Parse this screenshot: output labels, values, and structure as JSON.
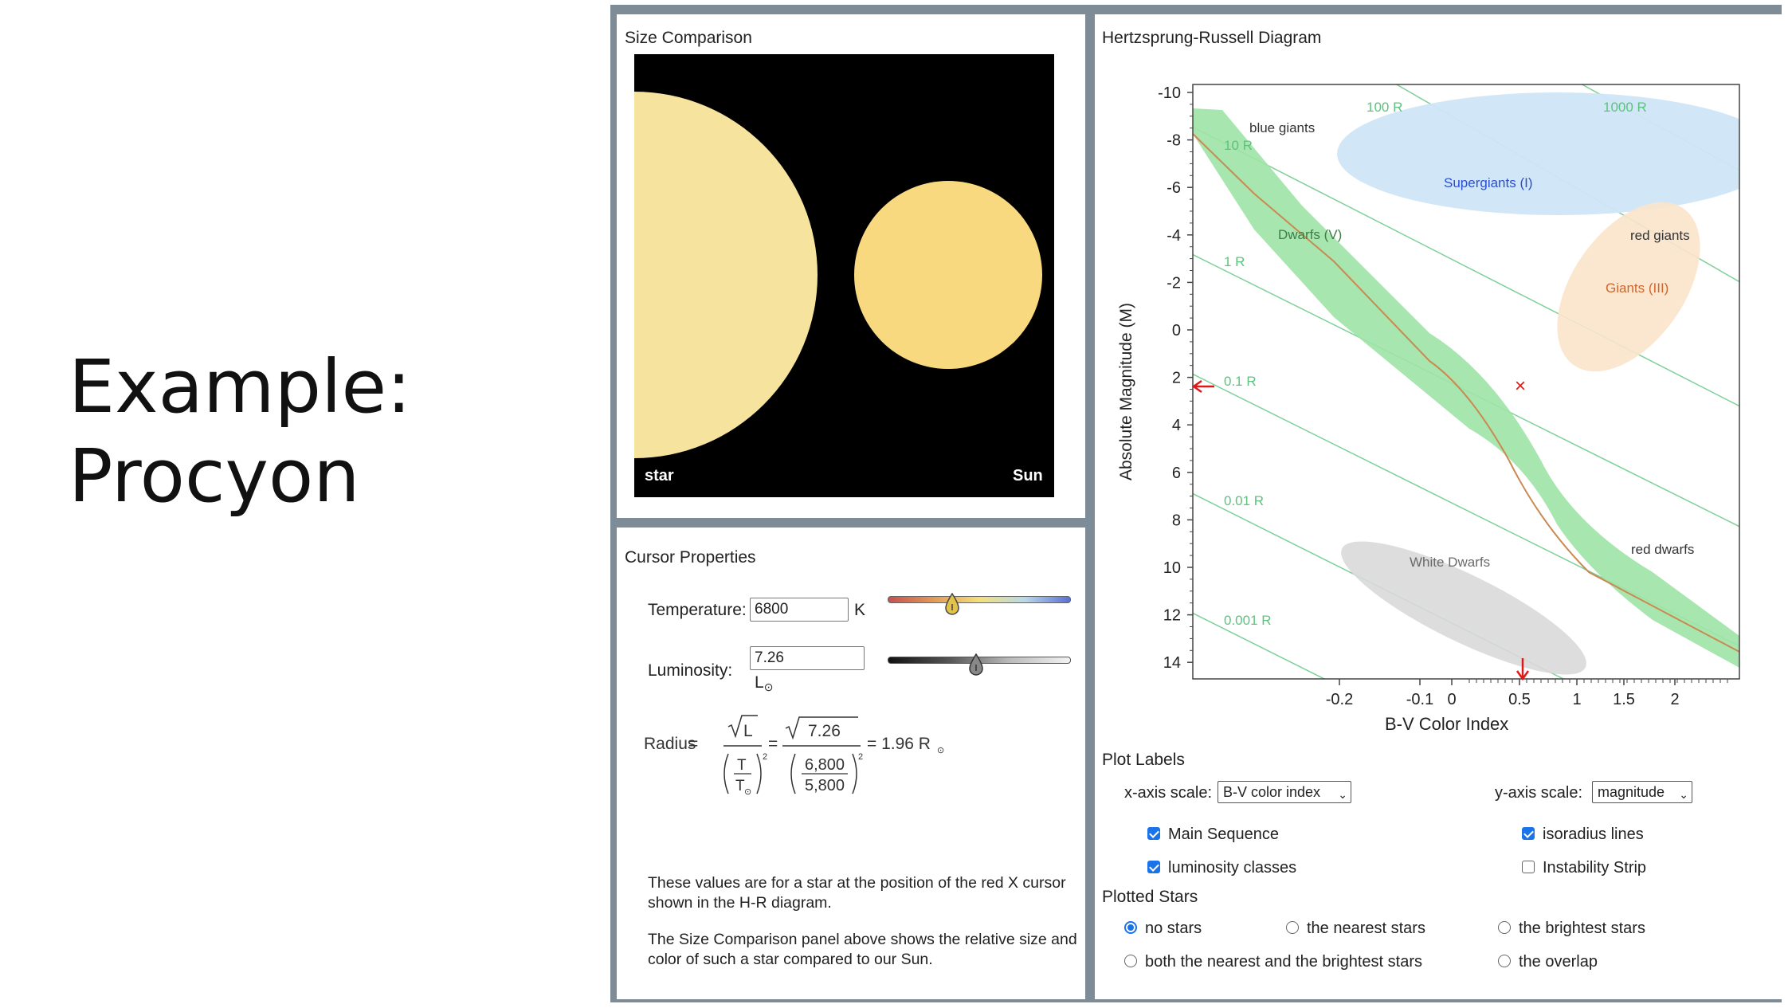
{
  "slide": {
    "title_line1": "Example:",
    "title_line2": "Procyon"
  },
  "size_comparison": {
    "title": "Size Comparison",
    "star_label": "star",
    "sun_label": "Sun",
    "star_color": "#f6e49e",
    "sun_color": "#f8d97f"
  },
  "cursor_properties": {
    "title": "Cursor Properties",
    "temperature_label": "Temperature:",
    "temperature_value": "6800",
    "temperature_unit": "K",
    "luminosity_label": "Luminosity:",
    "luminosity_value": "7.26",
    "luminosity_unit": "L",
    "radius_label": "Radius",
    "formula": {
      "sqrt_L": "L",
      "T": "T",
      "T_sun": "T",
      "lum_value": "7.26",
      "temp_num": "6,800",
      "temp_den": "5,800",
      "result": "= 1.96 R"
    },
    "description1": "These values are for a star at the position of the red X cursor shown in the H-R diagram.",
    "description2": "The Size Comparison panel above shows the relative size and color of such a star compared to our Sun."
  },
  "hr_diagram": {
    "title": "Hertzsprung-Russell Diagram",
    "xlabel": "B-V Color Index",
    "ylabel": "Absolute Magnitude (M)",
    "y_ticks": [
      "-10",
      "-8",
      "-6",
      "-4",
      "-2",
      "0",
      "2",
      "4",
      "6",
      "8",
      "10",
      "12",
      "14"
    ],
    "x_ticks": [
      "-0.2",
      "-0.1",
      "0",
      "0.5",
      "1",
      "1.5",
      "2"
    ],
    "regions": {
      "blue_giants": "blue giants",
      "supergiants": "Supergiants (I)",
      "dwarfs": "Dwarfs (V)",
      "red_giants": "red giants",
      "giants": "Giants (III)",
      "white_dwarfs": "White Dwarfs",
      "red_dwarfs": "red dwarfs"
    },
    "isoradius_labels": [
      "100 R",
      "1000 R",
      "10 R",
      "1 R",
      "0.1 R",
      "0.01 R",
      "0.001 R"
    ],
    "cursor_marker": "×"
  },
  "plot_labels": {
    "title": "Plot Labels",
    "x_axis_scale_label": "x-axis scale:",
    "x_axis_scale_value": "B-V color index",
    "y_axis_scale_label": "y-axis scale:",
    "y_axis_scale_value": "magnitude",
    "main_sequence": "Main Sequence",
    "isoradius_lines": "isoradius lines",
    "luminosity_classes": "luminosity classes",
    "instability_strip": "Instability Strip"
  },
  "plotted_stars": {
    "title": "Plotted Stars",
    "no_stars": "no stars",
    "nearest": "the nearest stars",
    "brightest": "the brightest stars",
    "both": "both the nearest and the brightest stars",
    "overlap": "the overlap"
  }
}
